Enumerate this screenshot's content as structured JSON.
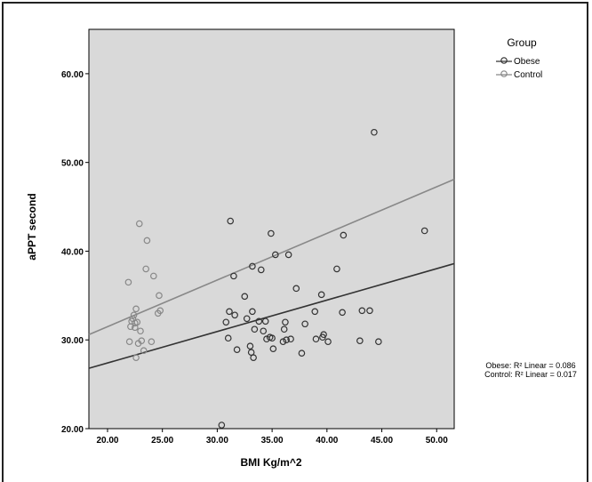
{
  "chart_data": {
    "type": "scatter",
    "xlabel": "BMI Kg/m^2",
    "ylabel": "aPPT second",
    "xlim": [
      18.3,
      51.6
    ],
    "ylim": [
      20,
      65
    ],
    "x_ticks": [
      "20.00",
      "25.00",
      "30.00",
      "35.00",
      "40.00",
      "45.00",
      "50.00"
    ],
    "x_tick_values": [
      20,
      25,
      30,
      35,
      40,
      45,
      50
    ],
    "y_ticks": [
      "20.00",
      "30.00",
      "40.00",
      "50.00",
      "60.00"
    ],
    "y_tick_values": [
      20,
      30,
      40,
      50,
      60
    ],
    "plot_background": "#d9d9d9",
    "grid": false,
    "legend": {
      "title": "Group",
      "position": "top-right",
      "entries": [
        {
          "label": "Obese",
          "color": "#333333"
        },
        {
          "label": "Control",
          "color": "#888888"
        }
      ]
    },
    "fit_labels": [
      "Obese: R² Linear = 0.086",
      "Control: R² Linear = 0.017"
    ],
    "series": [
      {
        "name": "Obese",
        "color": "#333333",
        "fit_line": {
          "x": [
            18.3,
            51.6
          ],
          "y": [
            26.8,
            38.6
          ]
        },
        "points": [
          [
            30.4,
            20.4
          ],
          [
            30.8,
            32.0
          ],
          [
            31.0,
            30.2
          ],
          [
            31.1,
            33.2
          ],
          [
            31.2,
            43.4
          ],
          [
            31.5,
            37.2
          ],
          [
            31.6,
            32.8
          ],
          [
            31.8,
            28.9
          ],
          [
            32.5,
            34.9
          ],
          [
            32.7,
            32.4
          ],
          [
            33.0,
            29.3
          ],
          [
            33.1,
            28.6
          ],
          [
            33.2,
            38.3
          ],
          [
            33.2,
            33.2
          ],
          [
            33.3,
            28.0
          ],
          [
            33.4,
            31.2
          ],
          [
            33.8,
            32.1
          ],
          [
            34.0,
            37.9
          ],
          [
            34.2,
            31.0
          ],
          [
            34.4,
            32.1
          ],
          [
            34.5,
            30.1
          ],
          [
            34.8,
            30.3
          ],
          [
            34.9,
            42.0
          ],
          [
            35.0,
            30.2
          ],
          [
            35.1,
            29.0
          ],
          [
            35.3,
            39.6
          ],
          [
            36.0,
            29.8
          ],
          [
            36.1,
            31.2
          ],
          [
            36.2,
            32.0
          ],
          [
            36.3,
            30.0
          ],
          [
            36.5,
            39.6
          ],
          [
            36.7,
            30.1
          ],
          [
            37.2,
            35.8
          ],
          [
            37.7,
            28.5
          ],
          [
            38.0,
            31.8
          ],
          [
            38.9,
            33.2
          ],
          [
            39.0,
            30.1
          ],
          [
            39.5,
            35.1
          ],
          [
            39.6,
            30.3
          ],
          [
            39.7,
            30.6
          ],
          [
            40.1,
            29.8
          ],
          [
            40.9,
            38.0
          ],
          [
            41.4,
            33.1
          ],
          [
            41.5,
            41.8
          ],
          [
            43.0,
            29.9
          ],
          [
            43.2,
            33.3
          ],
          [
            43.9,
            33.3
          ],
          [
            44.3,
            53.4
          ],
          [
            44.7,
            29.8
          ],
          [
            48.9,
            42.3
          ]
        ]
      },
      {
        "name": "Control",
        "color": "#888888",
        "fit_line": {
          "x": [
            18.3,
            51.6
          ],
          "y": [
            30.6,
            48.1
          ]
        },
        "points": [
          [
            21.9,
            36.5
          ],
          [
            22.0,
            29.8
          ],
          [
            22.1,
            31.5
          ],
          [
            22.2,
            32.1
          ],
          [
            22.3,
            32.4
          ],
          [
            22.4,
            32.8
          ],
          [
            22.5,
            31.9
          ],
          [
            22.5,
            31.4
          ],
          [
            22.6,
            28.0
          ],
          [
            22.6,
            33.5
          ],
          [
            22.7,
            32.0
          ],
          [
            22.8,
            29.6
          ],
          [
            22.9,
            43.1
          ],
          [
            23.0,
            31.0
          ],
          [
            23.1,
            29.9
          ],
          [
            23.3,
            28.8
          ],
          [
            23.5,
            38.0
          ],
          [
            23.6,
            41.2
          ],
          [
            24.0,
            29.8
          ],
          [
            24.2,
            37.2
          ],
          [
            24.6,
            33.0
          ],
          [
            24.7,
            35.0
          ],
          [
            24.8,
            33.3
          ]
        ]
      }
    ]
  }
}
